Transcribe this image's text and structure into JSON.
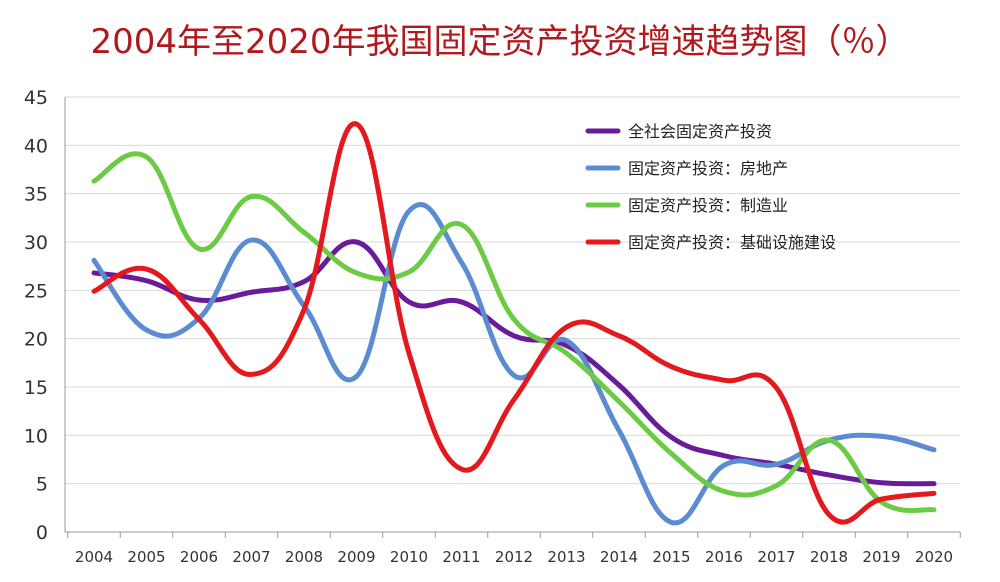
{
  "chart_data": {
    "type": "line",
    "title": "2004年至2020年我国固定资产投资增速趋势图（％）",
    "xlabel": "",
    "ylabel": "",
    "ylim": [
      0,
      45
    ],
    "yticks": [
      0,
      5,
      10,
      15,
      20,
      25,
      30,
      35,
      40,
      45
    ],
    "categories": [
      "2004",
      "2005",
      "2006",
      "2007",
      "2008",
      "2009",
      "2010",
      "2011",
      "2012",
      "2013",
      "2014",
      "2015",
      "2016",
      "2017",
      "2018",
      "2019",
      "2020"
    ],
    "grid": true,
    "legend_position": "top-right",
    "series": [
      {
        "name": "全社会固定资产投资",
        "color": "#6a1b9a",
        "values": [
          26.8,
          26.0,
          24.0,
          24.8,
          25.9,
          30.0,
          23.8,
          23.8,
          20.3,
          19.3,
          15.2,
          9.8,
          7.9,
          7.0,
          5.9,
          5.1,
          5.0
        ]
      },
      {
        "name": "固定资产投资：房地产",
        "color": "#5b8bd0",
        "values": [
          28.1,
          20.9,
          22.1,
          30.2,
          23.4,
          16.1,
          33.2,
          27.9,
          16.2,
          19.8,
          10.5,
          1.0,
          6.9,
          7.0,
          9.5,
          9.9,
          8.5
        ]
      },
      {
        "name": "固定资产投资：制造业",
        "color": "#6ccb45",
        "values": [
          36.3,
          38.8,
          29.3,
          34.7,
          31.0,
          26.8,
          26.9,
          31.8,
          22.0,
          18.5,
          13.5,
          8.1,
          4.2,
          4.8,
          9.5,
          3.1,
          2.3
        ]
      },
      {
        "name": "固定资产投资：基础设施建设",
        "color": "#e3191e",
        "values": [
          24.9,
          27.2,
          22.0,
          16.3,
          23.0,
          42.2,
          18.5,
          6.5,
          13.7,
          21.2,
          20.3,
          17.1,
          15.7,
          14.9,
          1.8,
          3.4,
          4.0
        ]
      }
    ]
  }
}
